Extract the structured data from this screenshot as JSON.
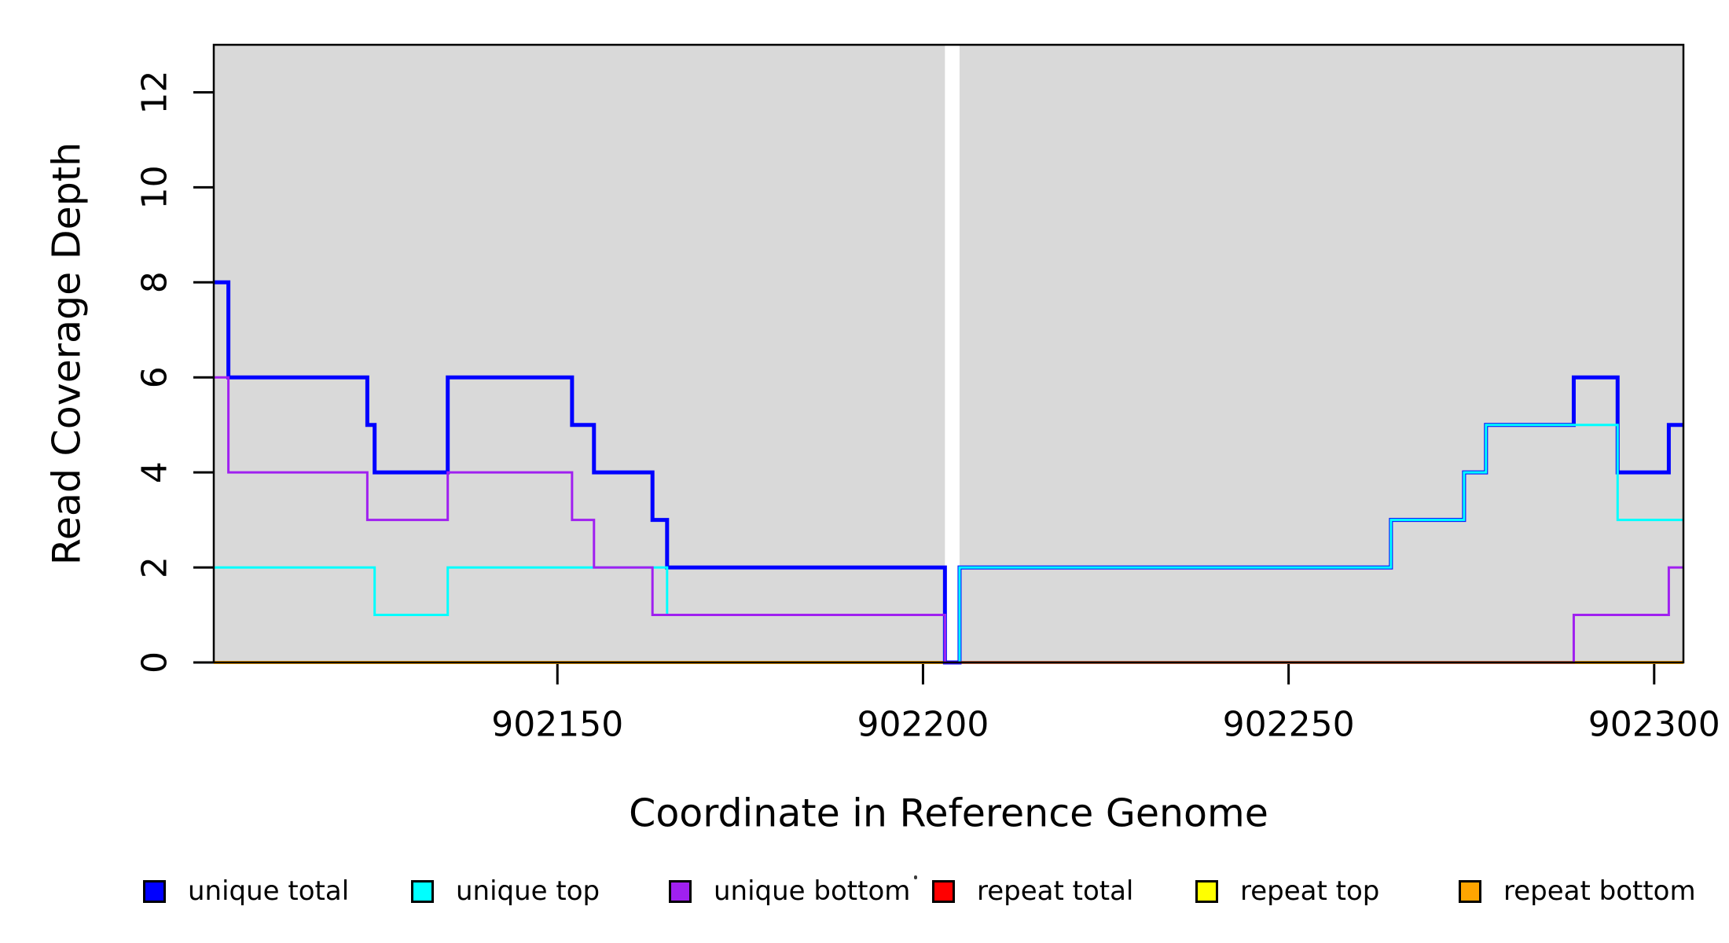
{
  "chart_data": {
    "type": "line",
    "subtype": "step",
    "title": "",
    "xlabel": "Coordinate in Reference Genome",
    "ylabel": "Read Coverage Depth",
    "xlim": [
      902103,
      902304
    ],
    "ylim": [
      0,
      13
    ],
    "x_ticks": [
      "902150",
      "902200",
      "902250",
      "902300"
    ],
    "x_tick_values": [
      902150,
      902200,
      902250,
      902300
    ],
    "y_ticks": [
      "0",
      "2",
      "4",
      "6",
      "8",
      "10",
      "12"
    ],
    "y_tick_values": [
      0,
      2,
      4,
      6,
      8,
      10,
      12
    ],
    "grid": false,
    "legend_position": "bottom",
    "plot_background_color": "#D9D9D9",
    "no_data_gap": [
      902203,
      902205
    ],
    "background_regions": [
      [
        902103,
        902203
      ],
      [
        902205,
        902304
      ]
    ],
    "series": [
      {
        "name": "unique total",
        "color": "#0000FF",
        "line_width": 5,
        "z": 4,
        "end_x": 902304,
        "steps": [
          [
            902103,
            8
          ],
          [
            902105,
            6
          ],
          [
            902124,
            5
          ],
          [
            902125,
            4
          ],
          [
            902135,
            6
          ],
          [
            902152,
            5
          ],
          [
            902155,
            4
          ],
          [
            902163,
            3
          ],
          [
            902165,
            2
          ],
          [
            902203,
            0
          ],
          [
            902205,
            2
          ],
          [
            902264,
            3
          ],
          [
            902274,
            4
          ],
          [
            902277,
            5
          ],
          [
            902289,
            6
          ],
          [
            902295,
            4
          ],
          [
            902302,
            5
          ]
        ]
      },
      {
        "name": "unique top",
        "color": "#00FFFF",
        "line_width": 3,
        "z": 5,
        "end_x": 902304,
        "steps": [
          [
            902103,
            2
          ],
          [
            902125,
            1
          ],
          [
            902135,
            2
          ],
          [
            902165,
            1
          ],
          [
            902203,
            0
          ],
          [
            902205,
            2
          ],
          [
            902264,
            3
          ],
          [
            902274,
            4
          ],
          [
            902277,
            5
          ],
          [
            902295,
            3
          ]
        ]
      },
      {
        "name": "unique bottom",
        "color": "#A020F0",
        "line_width": 3,
        "z": 6,
        "end_x": 902304,
        "steps": [
          [
            902103,
            6
          ],
          [
            902105,
            4
          ],
          [
            902124,
            3
          ],
          [
            902135,
            4
          ],
          [
            902152,
            3
          ],
          [
            902155,
            2
          ],
          [
            902163,
            1
          ],
          [
            902203,
            0
          ],
          [
            902289,
            1
          ],
          [
            902302,
            2
          ]
        ]
      },
      {
        "name": "repeat total",
        "color": "#FF0000",
        "line_width": 3,
        "z": 1,
        "end_x": 902304,
        "steps": [
          [
            902103,
            0
          ]
        ]
      },
      {
        "name": "repeat top",
        "color": "#FFFF00",
        "line_width": 3,
        "z": 2,
        "end_x": 902304,
        "steps": [
          [
            902103,
            0
          ]
        ]
      },
      {
        "name": "repeat bottom",
        "color": "#FFA500",
        "line_width": 4,
        "z": 3,
        "end_x": 902304,
        "steps": [
          [
            902103,
            0
          ]
        ]
      }
    ]
  }
}
